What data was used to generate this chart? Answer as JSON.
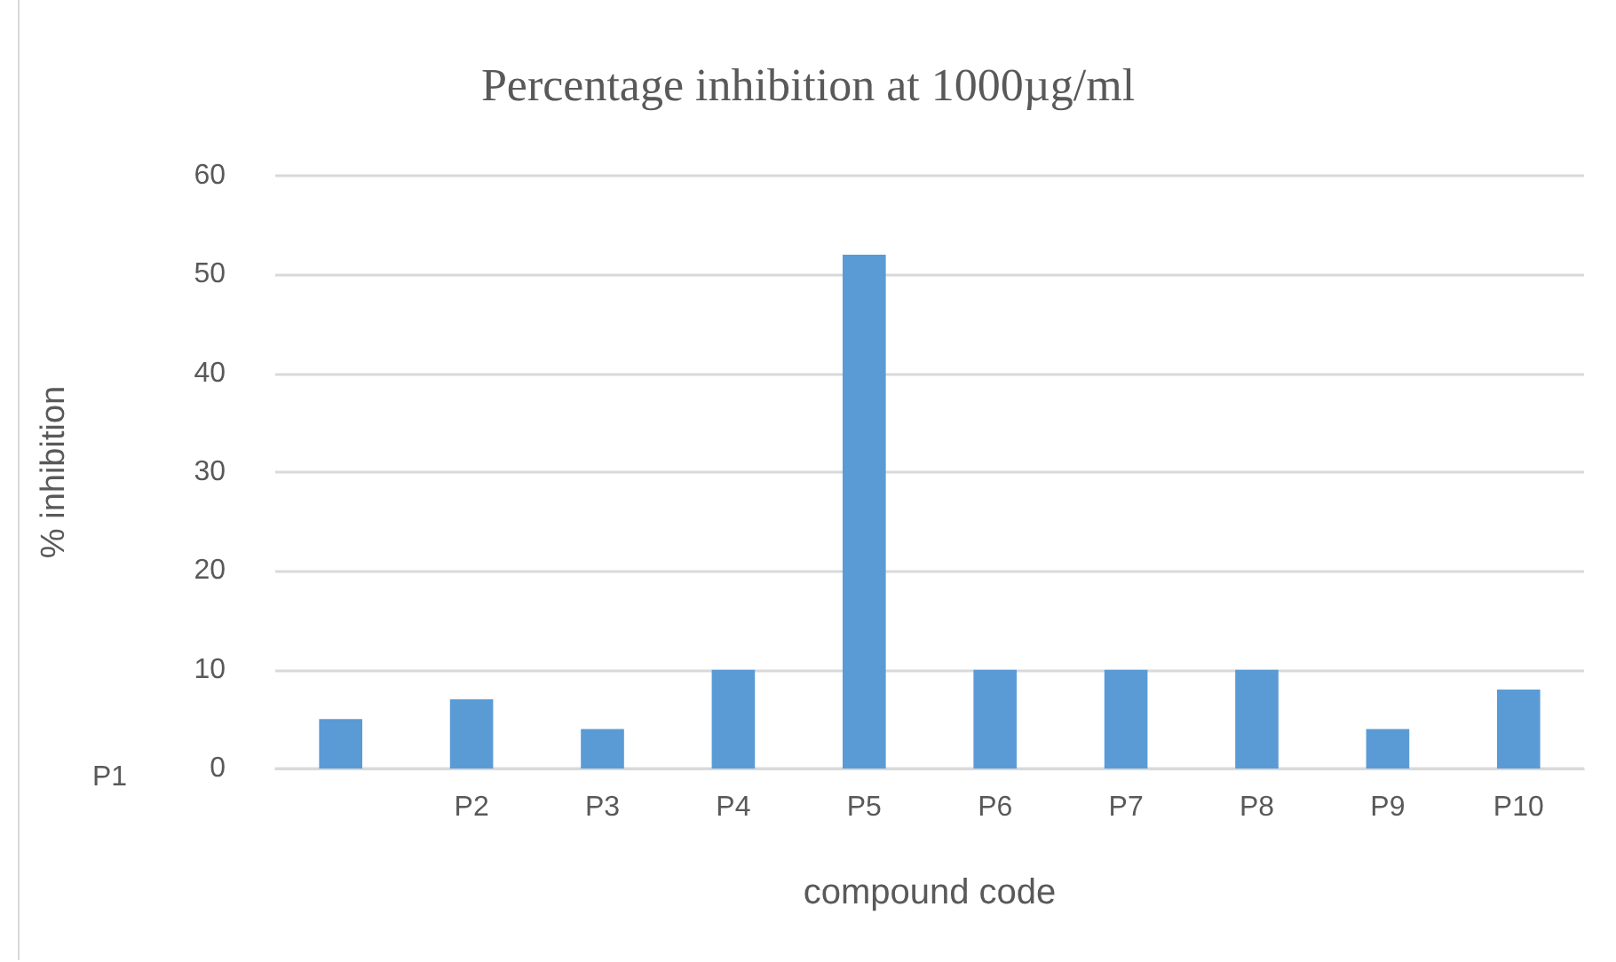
{
  "chart_data": {
    "type": "bar",
    "title": "Percentage inhibition at 1000µg/ml",
    "xlabel": "compound code",
    "ylabel": "% inhibition",
    "categories": [
      null,
      "P2",
      "P3",
      "P4",
      "P5",
      "P6",
      "P7",
      "P8",
      "P9",
      "P10"
    ],
    "values": [
      5,
      7,
      4,
      10,
      52,
      10,
      10,
      10,
      4,
      8
    ],
    "color": "#5b9bd5",
    "ylim": [
      0,
      60
    ],
    "yticks": [
      0,
      10,
      20,
      30,
      40,
      50,
      60
    ],
    "grid": "y",
    "annotations": [
      "P1"
    ]
  }
}
